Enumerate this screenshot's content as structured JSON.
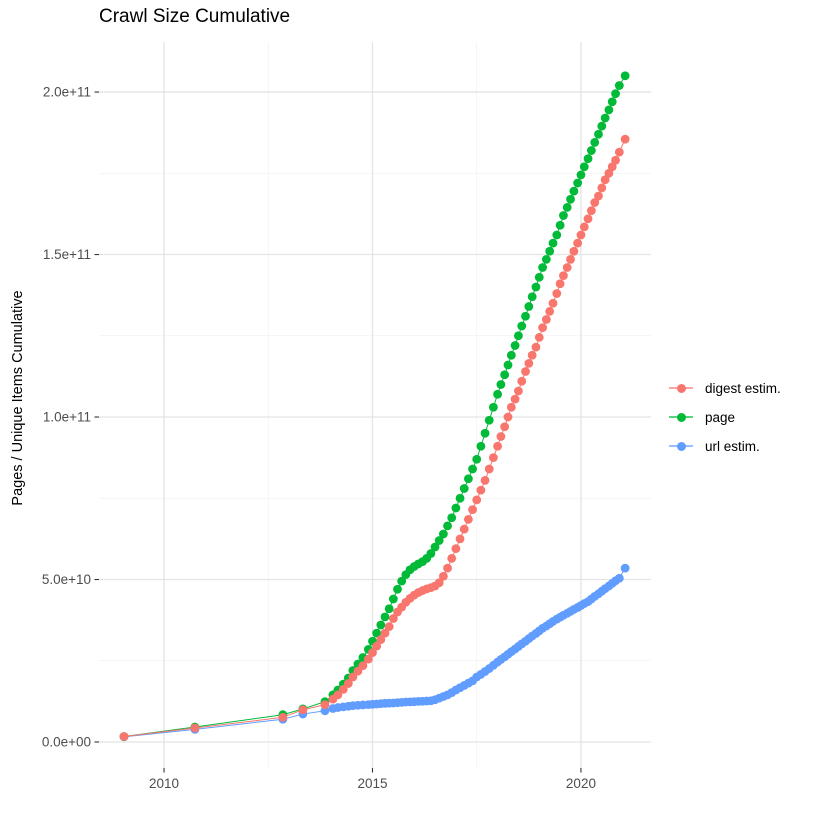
{
  "title": "Crawl Size Cumulative",
  "y_axis": {
    "title": "Pages / Unique Items Cumulative",
    "tick_labels": [
      "0.0e+00",
      "5.0e+10",
      "1.0e+11",
      "1.5e+11",
      "2.0e+11"
    ],
    "tick_values_e9": [
      0,
      50,
      100,
      150,
      200
    ]
  },
  "x_axis": {
    "title": "",
    "tick_labels": [
      "2010",
      "2015",
      "2020"
    ],
    "tick_values": [
      2010,
      2015,
      2020
    ]
  },
  "legend": {
    "items": [
      {
        "label": "digest estim.",
        "color": "#F8766D"
      },
      {
        "label": "page",
        "color": "#00BA38"
      },
      {
        "label": "url estim.",
        "color": "#619CFF"
      }
    ]
  },
  "colors": {
    "digest": "#F8766D",
    "page": "#00BA38",
    "url": "#619CFF",
    "tick_label": "#4D4D4D",
    "tick_mark": "#333333",
    "grid_major": "#E4E4E4",
    "grid_minor": "#F1F1F1"
  },
  "chart_data": {
    "type": "line",
    "markers": true,
    "title": "Crawl Size Cumulative",
    "xlabel": "",
    "ylabel": "Pages / Unique Items Cumulative",
    "x_unit": "decimal year",
    "y_unit_multiplier": 1000000000,
    "xlim": [
      2008.44,
      2021.68
    ],
    "ylim_e9": [
      -8,
      215.4
    ],
    "grid": true,
    "legend_position": "right",
    "x": [
      2009.04,
      2010.74,
      2012.85,
      2013.33,
      2013.86,
      2014.05,
      2014.17,
      2014.3,
      2014.42,
      2014.53,
      2014.65,
      2014.77,
      2014.9,
      2015.0,
      2015.1,
      2015.2,
      2015.3,
      2015.4,
      2015.5,
      2015.6,
      2015.7,
      2015.8,
      2015.9,
      2016.0,
      2016.1,
      2016.2,
      2016.3,
      2016.4,
      2016.5,
      2016.6,
      2016.7,
      2016.8,
      2016.9,
      2017.0,
      2017.1,
      2017.2,
      2017.3,
      2017.4,
      2017.5,
      2017.6,
      2017.7,
      2017.8,
      2017.9,
      2018.0,
      2018.08,
      2018.17,
      2018.25,
      2018.33,
      2018.42,
      2018.5,
      2018.58,
      2018.67,
      2018.75,
      2018.83,
      2018.92,
      2019.0,
      2019.08,
      2019.17,
      2019.25,
      2019.33,
      2019.42,
      2019.5,
      2019.58,
      2019.67,
      2019.75,
      2019.83,
      2019.92,
      2020.0,
      2020.08,
      2020.17,
      2020.25,
      2020.33,
      2020.42,
      2020.5,
      2020.58,
      2020.67,
      2020.75,
      2020.83,
      2020.92,
      2021.06
    ],
    "series": [
      {
        "name": "digest estim.",
        "color": "#F8766D",
        "z": 2,
        "y_e9": [
          1.7,
          4.3,
          7.6,
          9.9,
          11.5,
          13.2,
          14.5,
          16.2,
          18.0,
          20.0,
          21.8,
          23.5,
          25.5,
          27.5,
          29.5,
          31.5,
          33.5,
          35.5,
          38.0,
          40.0,
          41.5,
          43.0,
          44.2,
          45.2,
          46.0,
          46.6,
          47.1,
          47.5,
          48.0,
          49.0,
          51.0,
          53.5,
          56.5,
          59.5,
          62.5,
          65.5,
          68.5,
          71.5,
          74.5,
          77.5,
          80.5,
          84.0,
          87.5,
          91.0,
          94.0,
          97.0,
          100.0,
          103.0,
          105.5,
          108.0,
          111.0,
          114.0,
          116.5,
          119.0,
          121.5,
          124.5,
          127.5,
          130.0,
          132.5,
          135.0,
          138.0,
          141.0,
          143.5,
          146.0,
          148.5,
          151.0,
          153.5,
          156.0,
          158.5,
          161.0,
          163.5,
          166.0,
          168.0,
          170.5,
          173.0,
          175.0,
          177.0,
          179.0,
          181.5,
          185.5
        ]
      },
      {
        "name": "page",
        "color": "#00BA38",
        "z": 1,
        "y_e9": [
          1.7,
          4.6,
          8.4,
          10.2,
          12.4,
          14.5,
          16.0,
          17.8,
          19.7,
          22.0,
          24.0,
          26.0,
          28.5,
          31.0,
          33.5,
          36.0,
          38.5,
          41.0,
          44.0,
          47.0,
          49.5,
          51.5,
          53.0,
          54.0,
          54.8,
          55.5,
          56.5,
          58.0,
          60.0,
          62.0,
          64.0,
          66.5,
          69.0,
          72.0,
          75.0,
          78.0,
          81.0,
          84.0,
          87.0,
          91.0,
          95.0,
          99.0,
          103.0,
          107.0,
          110.0,
          113.0,
          116.0,
          119.0,
          122.0,
          125.0,
          128.0,
          131.0,
          134.0,
          137.0,
          140.0,
          143.0,
          146.0,
          148.5,
          151.0,
          153.5,
          156.0,
          159.0,
          162.0,
          164.5,
          167.0,
          169.5,
          172.0,
          174.5,
          177.0,
          179.5,
          182.0,
          184.5,
          187.0,
          189.5,
          192.0,
          194.5,
          197.0,
          199.5,
          202.0,
          205.0
        ]
      },
      {
        "name": "url estim.",
        "color": "#619CFF",
        "z": 0,
        "y_e9": [
          1.6,
          3.9,
          7.0,
          8.6,
          9.6,
          10.3,
          10.6,
          10.8,
          11.0,
          11.2,
          11.3,
          11.4,
          11.5,
          11.6,
          11.7,
          11.8,
          11.9,
          11.95,
          12.0,
          12.1,
          12.2,
          12.3,
          12.35,
          12.4,
          12.5,
          12.55,
          12.6,
          12.7,
          13.0,
          13.5,
          14.0,
          14.5,
          15.2,
          16.0,
          16.7,
          17.4,
          18.1,
          18.8,
          20.0,
          20.8,
          21.7,
          22.6,
          23.6,
          24.6,
          25.4,
          26.2,
          27.0,
          27.8,
          28.6,
          29.4,
          30.2,
          31.0,
          31.8,
          32.6,
          33.4,
          34.2,
          35.0,
          35.7,
          36.4,
          37.1,
          37.8,
          38.4,
          39.0,
          39.6,
          40.2,
          40.8,
          41.4,
          42.0,
          42.6,
          43.2,
          44.0,
          44.8,
          45.6,
          46.4,
          47.2,
          48.0,
          48.8,
          49.6,
          50.4,
          53.5
        ]
      }
    ]
  }
}
